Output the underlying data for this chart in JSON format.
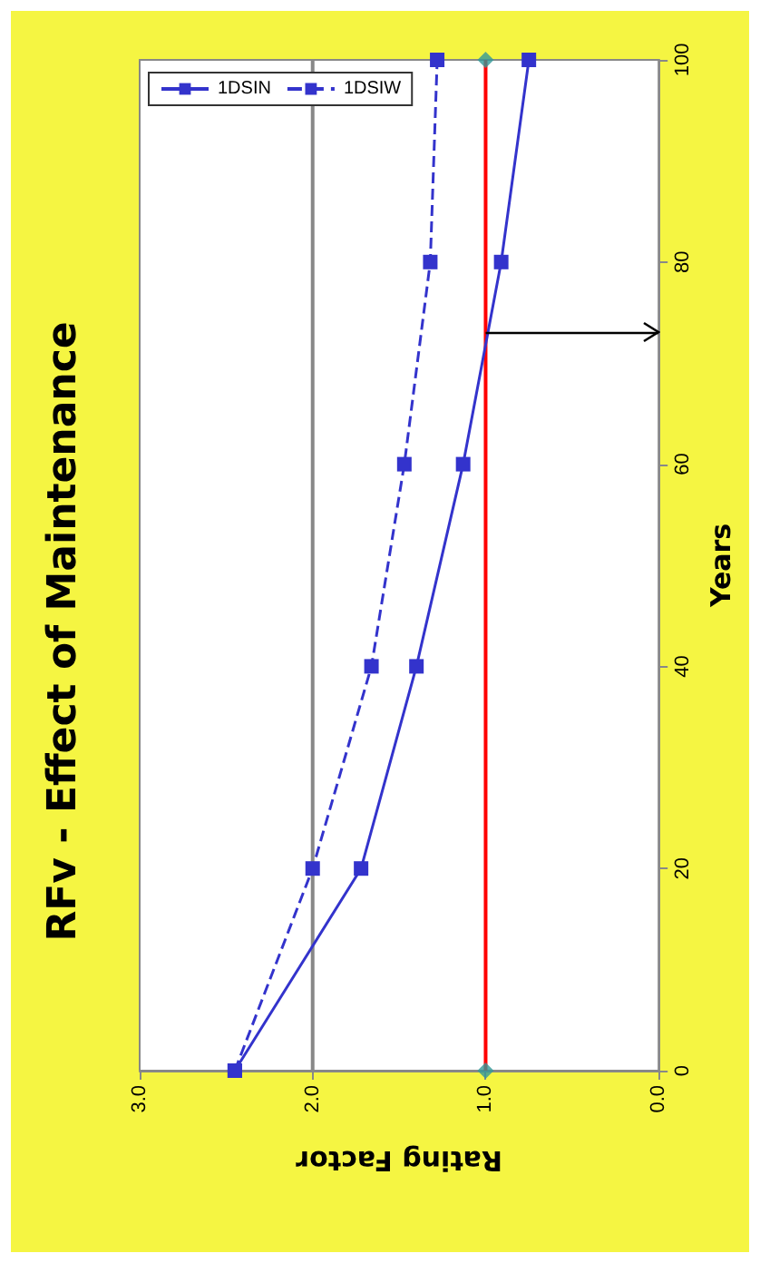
{
  "chart_data": {
    "type": "line",
    "title": "RFv - Effect of Maintenance",
    "xlabel": "Rating Factor",
    "ylabel": "Years",
    "series": [
      {
        "name": "1DSIN",
        "color": "#3333cc",
        "x": [
          2.45,
          1.72,
          1.4,
          1.13,
          0.91,
          0.75
        ],
        "values": [
          0,
          20,
          40,
          60,
          80,
          100
        ],
        "line_style": "solid"
      },
      {
        "name": "1DSIW",
        "color": "#3333cc",
        "x": [
          2.45,
          2.0,
          1.66,
          1.47,
          1.32,
          1.28
        ],
        "values": [
          0,
          20,
          40,
          60,
          80,
          100
        ],
        "line_style": "dashed"
      },
      {
        "type": "scatter",
        "color": "#339999",
        "x": [
          1,
          1
        ],
        "values": [
          0,
          100
        ],
        "marker": "diamond"
      }
    ],
    "ref_lines": [
      {
        "axis": "x",
        "value": 2,
        "color": "#888888"
      },
      {
        "axis": "x",
        "value": 1,
        "color": "#ff0000"
      },
      {
        "axis": "y",
        "value": 73,
        "color": "#000000"
      }
    ],
    "xlim": [
      3,
      0
    ],
    "xticks": [
      {
        "value": 3,
        "label": "3.0"
      },
      {
        "value": 2,
        "label": "2.0"
      },
      {
        "value": 1,
        "label": "1.0"
      },
      {
        "value": 0,
        "label": "0.0"
      }
    ],
    "ylim": [
      0,
      100
    ],
    "yticks": [
      0,
      20,
      40,
      60,
      80,
      100
    ],
    "legend": "top left",
    "marker": "square"
  }
}
